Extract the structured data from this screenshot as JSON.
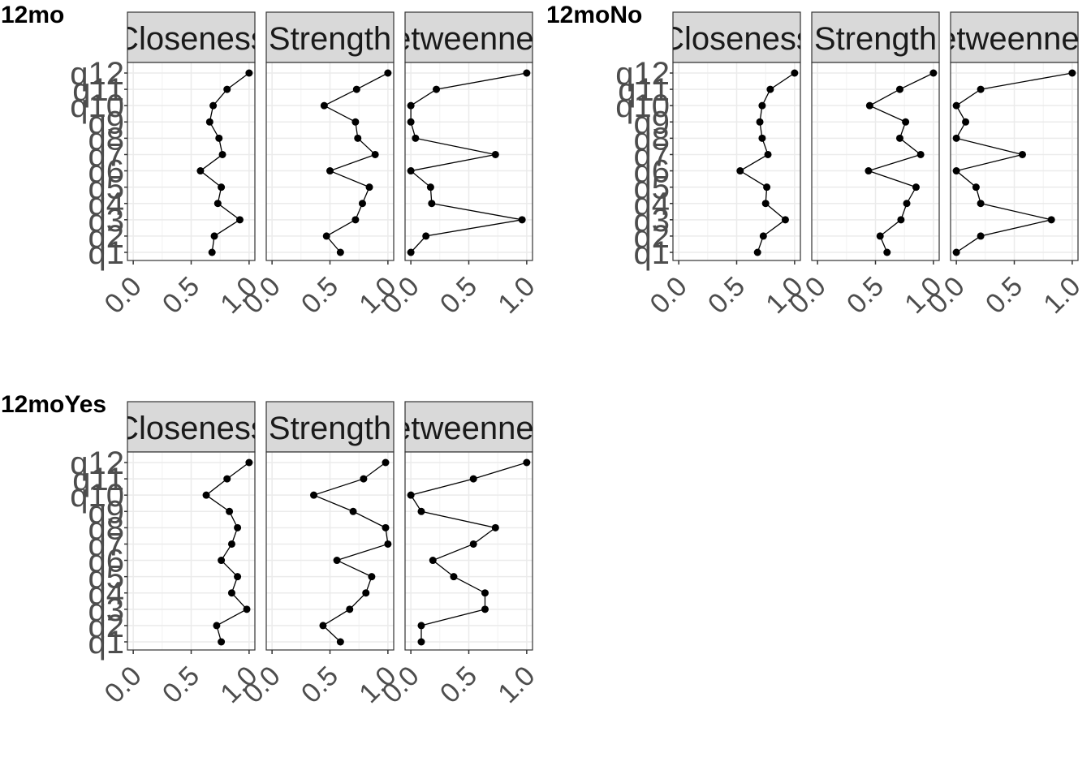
{
  "chart_data": [
    {
      "type": "line",
      "title": "12mo",
      "facets": [
        "Closeness",
        "Strength",
        "Betweenness"
      ],
      "categories": [
        "q1",
        "q2",
        "q3",
        "q4",
        "q5",
        "q6",
        "q7",
        "q8",
        "q9",
        "q10",
        "q11",
        "q12"
      ],
      "xlim": [
        -0.05,
        1.05
      ],
      "xticks": [
        "0.0",
        "0.5",
        "1.0"
      ],
      "series": [
        {
          "facet": "Closeness",
          "values": [
            0.68,
            0.7,
            0.92,
            0.73,
            0.76,
            0.58,
            0.77,
            0.74,
            0.66,
            0.69,
            0.81,
            1.0
          ]
        },
        {
          "facet": "Strength",
          "values": [
            0.59,
            0.47,
            0.72,
            0.78,
            0.84,
            0.5,
            0.89,
            0.74,
            0.72,
            0.45,
            0.73,
            1.0
          ]
        },
        {
          "facet": "Betweenness",
          "values": [
            0.0,
            0.13,
            0.96,
            0.18,
            0.17,
            0.0,
            0.73,
            0.04,
            0.0,
            0.0,
            0.22,
            1.0
          ]
        }
      ]
    },
    {
      "type": "line",
      "title": "12moNo",
      "facets": [
        "Closeness",
        "Strength",
        "Betweenness"
      ],
      "categories": [
        "q1",
        "q2",
        "q3",
        "q4",
        "q5",
        "q6",
        "q7",
        "q8",
        "q9",
        "q10",
        "q11",
        "q12"
      ],
      "xlim": [
        -0.05,
        1.05
      ],
      "xticks": [
        "0.0",
        "0.5",
        "1.0"
      ],
      "series": [
        {
          "facet": "Closeness",
          "values": [
            0.68,
            0.73,
            0.92,
            0.75,
            0.76,
            0.53,
            0.77,
            0.72,
            0.7,
            0.72,
            0.79,
            1.0
          ]
        },
        {
          "facet": "Strength",
          "values": [
            0.6,
            0.54,
            0.72,
            0.77,
            0.85,
            0.44,
            0.89,
            0.71,
            0.76,
            0.45,
            0.71,
            1.0
          ]
        },
        {
          "facet": "Betweenness",
          "values": [
            0.0,
            0.21,
            0.82,
            0.21,
            0.17,
            0.0,
            0.57,
            0.0,
            0.08,
            0.0,
            0.21,
            1.0
          ]
        }
      ]
    },
    {
      "type": "line",
      "title": "12moYes",
      "facets": [
        "Closeness",
        "Strength",
        "Betweenness"
      ],
      "categories": [
        "q1",
        "q2",
        "q3",
        "q4",
        "q5",
        "q6",
        "q7",
        "q8",
        "q9",
        "q10",
        "q11",
        "q12"
      ],
      "xlim": [
        -0.05,
        1.05
      ],
      "xticks": [
        "0.0",
        "0.5",
        "1.0"
      ],
      "series": [
        {
          "facet": "Closeness",
          "values": [
            0.76,
            0.72,
            0.98,
            0.85,
            0.9,
            0.76,
            0.85,
            0.9,
            0.83,
            0.63,
            0.81,
            1.0
          ]
        },
        {
          "facet": "Strength",
          "values": [
            0.59,
            0.44,
            0.67,
            0.81,
            0.86,
            0.56,
            1.0,
            0.98,
            0.7,
            0.36,
            0.79,
            0.98
          ]
        },
        {
          "facet": "Betweenness",
          "values": [
            0.09,
            0.09,
            0.64,
            0.64,
            0.37,
            0.19,
            0.54,
            0.73,
            0.09,
            0.0,
            0.54,
            1.0
          ]
        }
      ]
    }
  ]
}
